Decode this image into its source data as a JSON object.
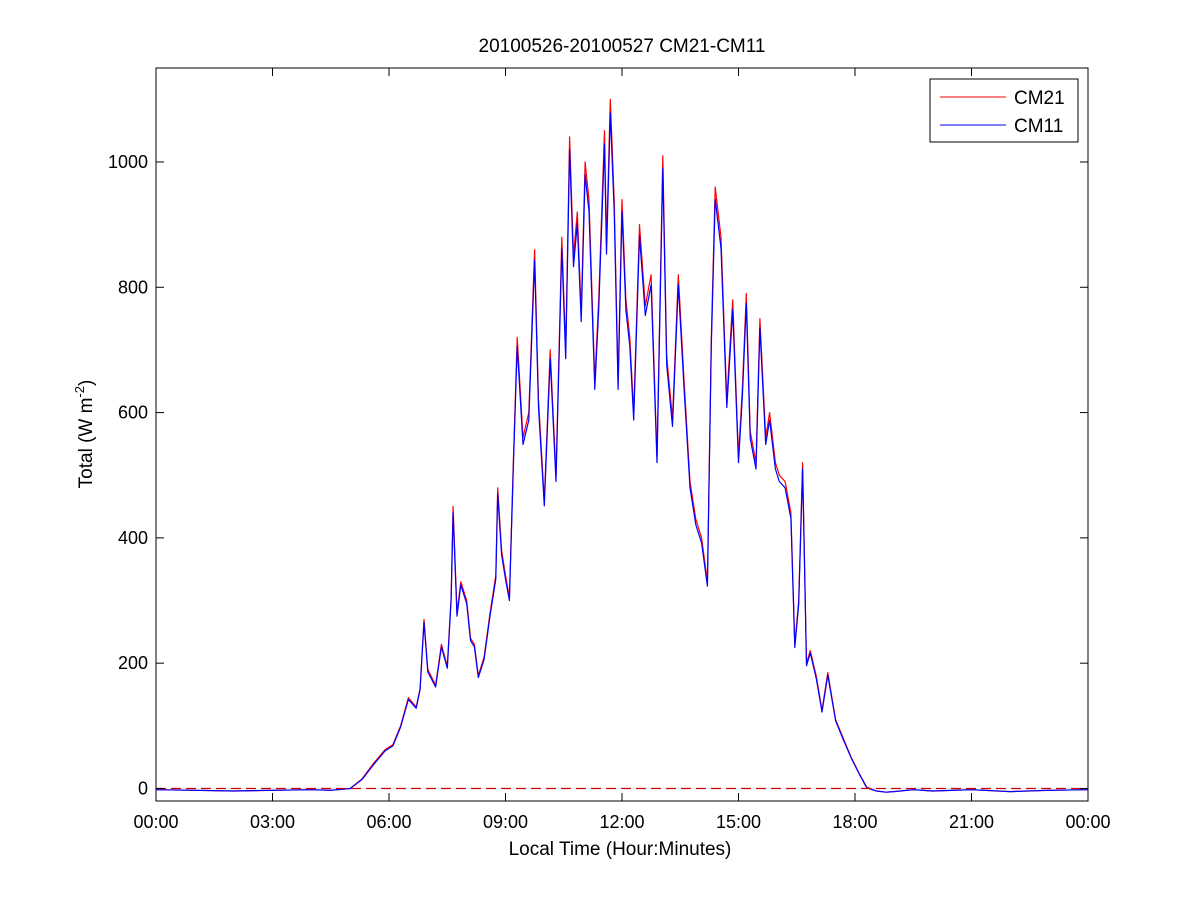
{
  "chart_data": {
    "type": "line",
    "title": "20100526-20100527 CM21-CM11",
    "xlabel": "Local Time (Hour:Minutes)",
    "ylabel": {
      "main": "Total (W m",
      "sup": "-2",
      "close": ")"
    },
    "xlim": [
      0,
      24
    ],
    "ylim": [
      -20,
      1150
    ],
    "x_ticks": [
      {
        "value": 0,
        "label": "00:00"
      },
      {
        "value": 3,
        "label": "03:00"
      },
      {
        "value": 6,
        "label": "06:00"
      },
      {
        "value": 9,
        "label": "09:00"
      },
      {
        "value": 12,
        "label": "12:00"
      },
      {
        "value": 15,
        "label": "15:00"
      },
      {
        "value": 18,
        "label": "18:00"
      },
      {
        "value": 21,
        "label": "21:00"
      },
      {
        "value": 24,
        "label": "00:00"
      }
    ],
    "y_ticks": [
      {
        "value": 0,
        "label": "0"
      },
      {
        "value": 200,
        "label": "200"
      },
      {
        "value": 400,
        "label": "400"
      },
      {
        "value": 600,
        "label": "600"
      },
      {
        "value": 800,
        "label": "800"
      },
      {
        "value": 1000,
        "label": "1000"
      }
    ],
    "grid": false,
    "legend_position": "top-right",
    "zero_reference": {
      "value": 0,
      "style": "dashed",
      "color": "#cc0000"
    },
    "series": [
      {
        "name": "CM21",
        "color": "#ff0000",
        "x": [
          0,
          1,
          2,
          3,
          4,
          4.5,
          5,
          5.3,
          5.6,
          5.9,
          6.1,
          6.3,
          6.5,
          6.7,
          6.8,
          6.9,
          7.0,
          7.2,
          7.35,
          7.5,
          7.6,
          7.65,
          7.75,
          7.85,
          8.0,
          8.1,
          8.2,
          8.3,
          8.45,
          8.6,
          8.75,
          8.8,
          8.9,
          9.0,
          9.1,
          9.2,
          9.3,
          9.45,
          9.6,
          9.75,
          9.85,
          10.0,
          10.15,
          10.3,
          10.45,
          10.55,
          10.65,
          10.75,
          10.85,
          10.95,
          11.05,
          11.15,
          11.3,
          11.4,
          11.55,
          11.6,
          11.7,
          11.8,
          11.9,
          12.0,
          12.1,
          12.2,
          12.3,
          12.45,
          12.6,
          12.75,
          12.9,
          13.05,
          13.15,
          13.3,
          13.45,
          13.6,
          13.75,
          13.9,
          14.05,
          14.2,
          14.3,
          14.4,
          14.55,
          14.7,
          14.85,
          15.0,
          15.1,
          15.2,
          15.3,
          15.45,
          15.55,
          15.7,
          15.8,
          15.95,
          16.05,
          16.2,
          16.35,
          16.45,
          16.55,
          16.65,
          16.75,
          16.85,
          17.0,
          17.15,
          17.3,
          17.5,
          17.7,
          17.9,
          18.1,
          18.3,
          18.55,
          18.8,
          19.0,
          19.5,
          20,
          21,
          22,
          23,
          24
        ],
        "y": [
          -2,
          -3,
          -4,
          -3,
          -2,
          -3,
          0,
          15,
          40,
          62,
          70,
          100,
          145,
          130,
          160,
          270,
          190,
          165,
          230,
          195,
          305,
          450,
          280,
          330,
          300,
          240,
          230,
          180,
          210,
          280,
          340,
          480,
          380,
          340,
          305,
          520,
          720,
          560,
          600,
          860,
          620,
          460,
          700,
          500,
          880,
          700,
          1040,
          850,
          920,
          760,
          1000,
          940,
          650,
          780,
          1050,
          870,
          1100,
          940,
          650,
          940,
          780,
          720,
          600,
          900,
          770,
          820,
          530,
          1010,
          690,
          590,
          820,
          650,
          490,
          430,
          400,
          330,
          720,
          960,
          880,
          620,
          780,
          530,
          640,
          790,
          570,
          520,
          750,
          560,
          600,
          520,
          500,
          490,
          440,
          230,
          300,
          520,
          200,
          220,
          180,
          125,
          185,
          110,
          80,
          50,
          25,
          2,
          -4,
          -6,
          -5,
          -2,
          -4,
          -2,
          -5,
          -3,
          -2
        ]
      },
      {
        "name": "CM11",
        "color": "#0000ff",
        "x": [
          0,
          1,
          2,
          3,
          4,
          4.5,
          5,
          5.3,
          5.6,
          5.9,
          6.1,
          6.3,
          6.5,
          6.7,
          6.8,
          6.9,
          7.0,
          7.2,
          7.35,
          7.5,
          7.6,
          7.65,
          7.75,
          7.85,
          8.0,
          8.1,
          8.2,
          8.3,
          8.45,
          8.6,
          8.75,
          8.8,
          8.9,
          9.0,
          9.1,
          9.2,
          9.3,
          9.45,
          9.6,
          9.75,
          9.85,
          10.0,
          10.15,
          10.3,
          10.45,
          10.55,
          10.65,
          10.75,
          10.85,
          10.95,
          11.05,
          11.15,
          11.3,
          11.4,
          11.55,
          11.6,
          11.7,
          11.8,
          11.9,
          12.0,
          12.1,
          12.2,
          12.3,
          12.45,
          12.6,
          12.75,
          12.9,
          13.05,
          13.15,
          13.3,
          13.45,
          13.6,
          13.75,
          13.9,
          14.05,
          14.2,
          14.3,
          14.4,
          14.55,
          14.7,
          14.85,
          15.0,
          15.1,
          15.2,
          15.3,
          15.45,
          15.55,
          15.7,
          15.8,
          15.95,
          16.05,
          16.2,
          16.35,
          16.45,
          16.55,
          16.65,
          16.75,
          16.85,
          17.0,
          17.15,
          17.3,
          17.5,
          17.7,
          17.9,
          18.1,
          18.3,
          18.55,
          18.8,
          19.0,
          19.5,
          20,
          21,
          22,
          23,
          24
        ],
        "y": [
          -2,
          -3,
          -4,
          -3,
          -2,
          -3,
          0,
          14,
          38,
          60,
          68,
          98,
          142,
          128,
          158,
          265,
          186,
          162,
          226,
          192,
          300,
          440,
          275,
          325,
          295,
          236,
          226,
          177,
          206,
          275,
          334,
          470,
          373,
          334,
          300,
          510,
          706,
          549,
          588,
          843,
          608,
          451,
          686,
          490,
          862,
          686,
          1020,
          833,
          902,
          745,
          980,
          921,
          637,
          764,
          1029,
          853,
          1078,
          921,
          637,
          921,
          764,
          706,
          588,
          882,
          755,
          804,
          520,
          990,
          676,
          578,
          804,
          637,
          480,
          421,
          392,
          323,
          706,
          941,
          862,
          608,
          764,
          520,
          627,
          774,
          559,
          510,
          735,
          549,
          588,
          510,
          490,
          480,
          431,
          225,
          294,
          510,
          196,
          216,
          176,
          122,
          181,
          108,
          78,
          49,
          24,
          1,
          -4,
          -6,
          -5,
          -2,
          -4,
          -2,
          -5,
          -3,
          -2
        ]
      }
    ]
  }
}
